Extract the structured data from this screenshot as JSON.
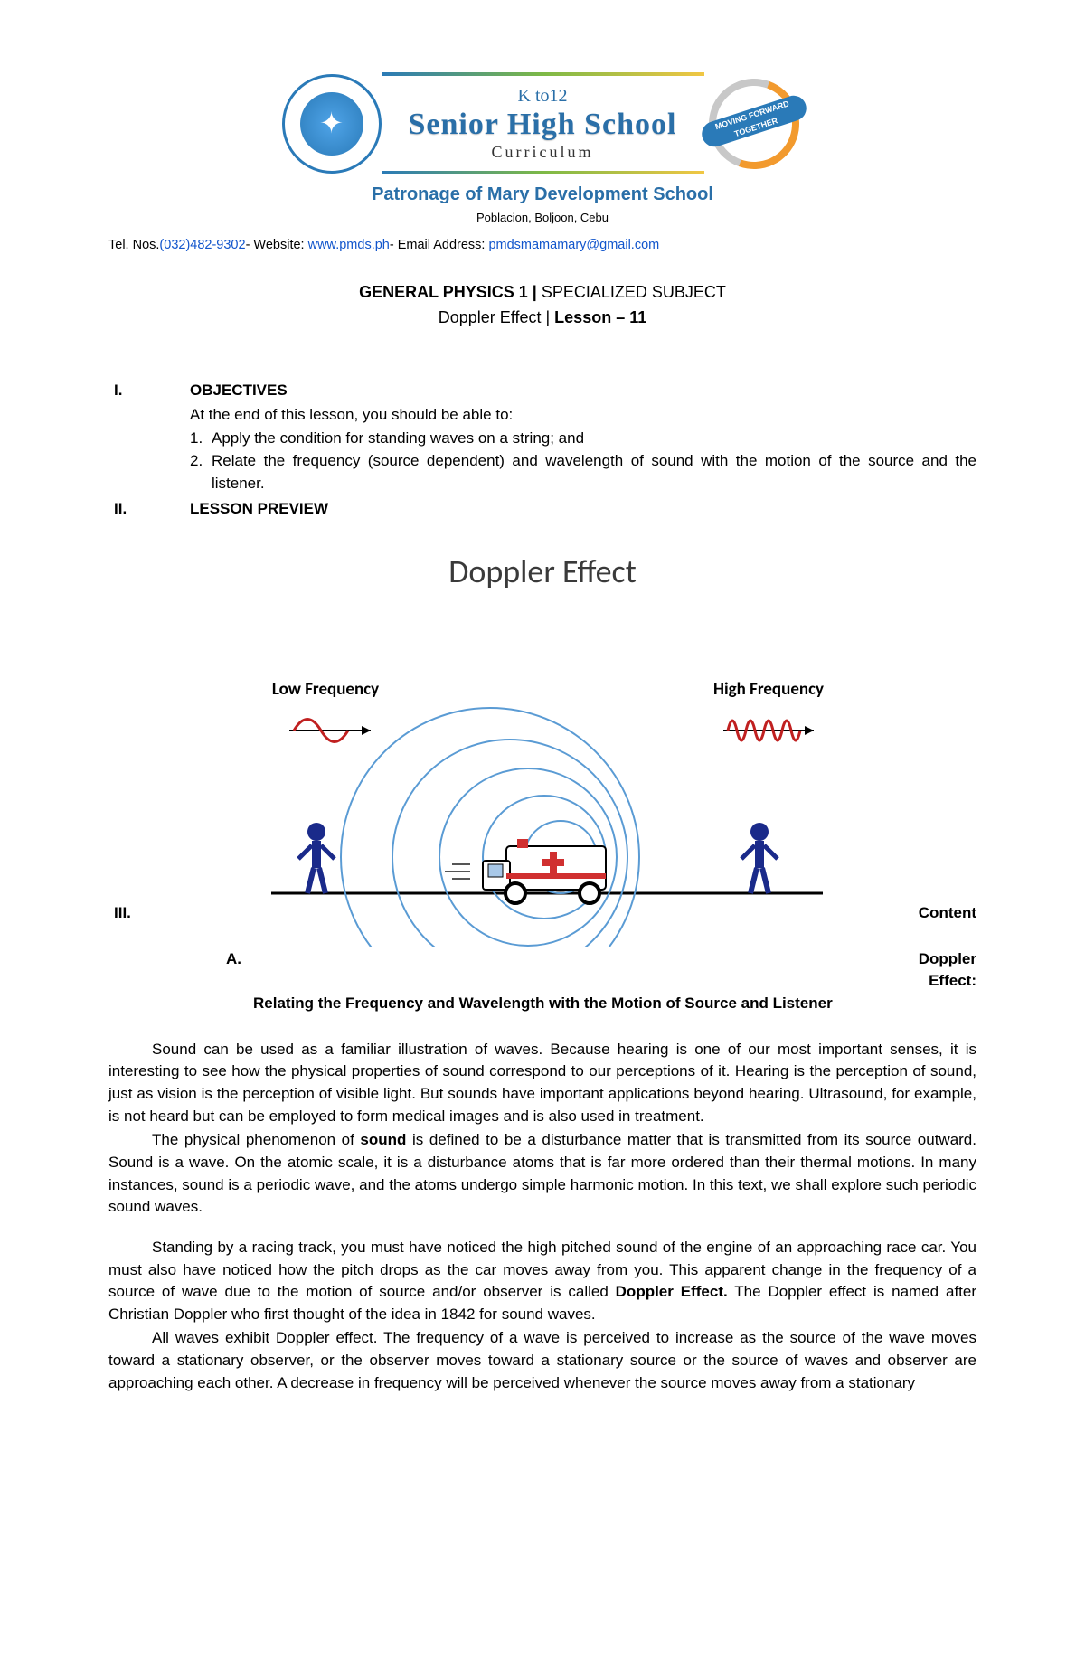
{
  "header": {
    "kto12": "K to12",
    "shs": "Senior High School",
    "curriculum": "Curriculum",
    "forward_top": "MOVING FORWARD",
    "forward_bottom": "TOGETHER",
    "school_name": "Patronage of Mary Development School",
    "address": "Poblacion, Boljoon, Cebu",
    "contact_prefix": "Tel. Nos.",
    "phone": "(032)482-9302",
    "website_label": "- Website: ",
    "website": "www.pmds.ph",
    "email_label": "- Email Address: ",
    "email": "pmdsmamamary@gmail.com"
  },
  "course": {
    "subject_bold": "GENERAL PHYSICS 1 | ",
    "subject_rest": "SPECIALIZED SUBJECT",
    "lesson_prefix": "Doppler Effect | ",
    "lesson_bold": "Lesson – 11"
  },
  "sections": {
    "i_num": "I.",
    "i_title": "OBJECTIVES",
    "obj_intro": "At the end of this lesson, you should be able to:",
    "objectives": [
      {
        "num": "1.",
        "text": "Apply the condition for standing waves on a string; and"
      },
      {
        "num": "2.",
        "text": "Relate the frequency (source dependent) and wavelength of sound with the motion of the source and the listener."
      }
    ],
    "ii_num": "II.",
    "ii_title": "LESSON PREVIEW",
    "iii_num": "III.",
    "iii_title": "Content",
    "a_letter": "A.",
    "a_right1": "Doppler",
    "a_right2": "Effect:",
    "a_sub": "Relating the Frequency and Wavelength with the Motion of Source and Listener"
  },
  "diagram": {
    "title": "Doppler Effect",
    "low_label": "Low Frequency",
    "high_label": "High Frequency",
    "wave_color": "#c02020",
    "person_color": "#1a2a8a",
    "circle_color": "#5a9bd4",
    "ground_color": "#000000",
    "ambulance_body": "#ffffff",
    "ambulance_stripe": "#d03030",
    "ambulance_cross": "#d03030",
    "circle_cx_offsets": [
      0,
      18,
      36,
      56,
      78
    ],
    "circle_radii": [
      40,
      68,
      98,
      130,
      165
    ]
  },
  "body": {
    "p1": "Sound can be used as a familiar illustration of waves. Because hearing is one of our most important senses, it is interesting to see how the physical properties of sound correspond to our perceptions of it. Hearing is the perception of sound, just as vision is the perception of visible light. But sounds have important applications beyond hearing. Ultrasound, for example, is not heard but can be employed to form medical images and is also used in treatment.",
    "p2a": "The physical phenomenon of ",
    "p2b": "sound",
    "p2c": " is defined to be a disturbance matter that is transmitted from its source outward. Sound is a wave. On the atomic scale, it is a disturbance atoms that is far more ordered than their thermal motions. In many instances, sound is a periodic wave, and the atoms undergo simple harmonic motion. In this text, we shall explore such periodic sound waves.",
    "p3a": "Standing by a racing track, you must have noticed the high pitched sound of the engine of an approaching race car. You must also have noticed how the pitch drops as the car moves away from you. This apparent change in the frequency of a source of wave due to the motion of source and/or observer is called ",
    "p3b": "Doppler Effect.",
    "p3c": " The Doppler effect is named after Christian Doppler who first thought of the idea in 1842 for sound waves.",
    "p4": "All waves exhibit Doppler effect. The frequency of a wave is perceived to increase as the source of the wave moves toward a stationary observer, or the observer moves toward a stationary source or the source of waves and observer are approaching each other. A decrease in frequency will be perceived whenever the source moves away from a stationary"
  }
}
